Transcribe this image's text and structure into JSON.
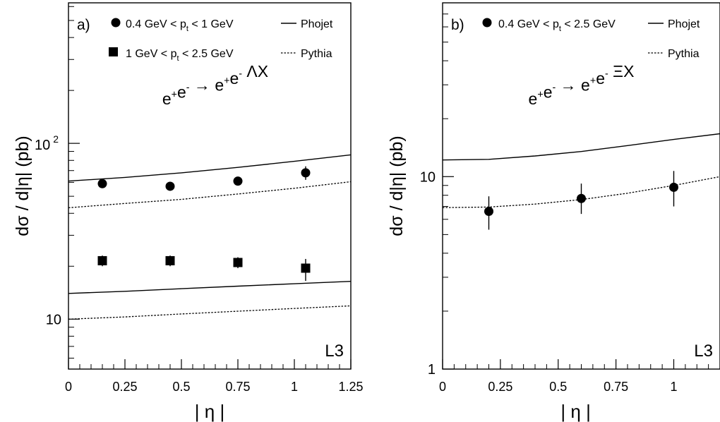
{
  "chart_data": [
    {
      "type": "scatter",
      "panel_label": "a)",
      "ylabel": "dσ / d|η| (pb)",
      "xlabel": "| η |",
      "reaction": "e⁺e⁻ → e⁺e⁻ ΛX",
      "experiment": "L3",
      "x_scale": "linear",
      "y_scale": "log",
      "xlim": [
        0,
        1.25
      ],
      "ylim": [
        5.2,
        630
      ],
      "x_ticks": [
        "0",
        "0.25",
        "0.5",
        "0.75",
        "1",
        "1.25"
      ],
      "y_tick_labels": [
        {
          "value": 100,
          "label": "10",
          "exponent": "2"
        },
        {
          "value": 10,
          "label": "10",
          "exponent": ""
        }
      ],
      "legend": [
        {
          "marker": "circle",
          "text": "0.4 GeV < p",
          "sub": "t",
          "text2": " < 1 GeV"
        },
        {
          "marker": "square",
          "text": "1 GeV < p",
          "sub": "t",
          "text2": " < 2.5 GeV"
        },
        {
          "line": "solid",
          "text": "Phojet"
        },
        {
          "line": "dotted",
          "text": "Pythia"
        }
      ],
      "series": [
        {
          "marker": "circle",
          "x": [
            0.15,
            0.45,
            0.75,
            1.05
          ],
          "y": [
            59,
            57,
            61,
            68
          ],
          "yerr_low": [
            1.5,
            1.5,
            2.5,
            6
          ],
          "yerr_high": [
            1.5,
            1.5,
            2.5,
            6
          ]
        },
        {
          "marker": "square",
          "x": [
            0.15,
            0.45,
            0.75,
            1.05
          ],
          "y": [
            21.5,
            21.5,
            21,
            19.5
          ],
          "yerr_low": [
            1.5,
            1.5,
            1.5,
            3
          ],
          "yerr_high": [
            1.5,
            1.5,
            1.5,
            2.5
          ]
        },
        {
          "line": "solid",
          "x": [
            0,
            0.25,
            0.5,
            0.75,
            1.0,
            1.25
          ],
          "y": [
            61,
            64,
            68,
            73,
            79,
            86
          ]
        },
        {
          "line": "dotted",
          "x": [
            0,
            0.25,
            0.5,
            0.75,
            1.0,
            1.25
          ],
          "y": [
            43,
            45.5,
            48,
            51.5,
            55.5,
            60.5
          ]
        },
        {
          "line": "solid",
          "x": [
            0,
            0.25,
            0.5,
            0.75,
            1.0,
            1.25
          ],
          "y": [
            14,
            14.4,
            14.9,
            15.4,
            15.9,
            16.4
          ]
        },
        {
          "line": "dotted",
          "x": [
            0,
            0.25,
            0.5,
            0.75,
            1.0,
            1.25
          ],
          "y": [
            10,
            10.3,
            10.7,
            11.1,
            11.5,
            11.9
          ]
        }
      ]
    },
    {
      "type": "scatter",
      "panel_label": "b)",
      "ylabel": "dσ / d|η| (pb)",
      "xlabel": "| η |",
      "reaction": "e⁺e⁻ → e⁺e⁻ ΞX",
      "experiment": "L3",
      "x_scale": "linear",
      "y_scale": "log",
      "xlim": [
        0,
        1.2
      ],
      "ylim": [
        1,
        80
      ],
      "x_ticks": [
        "0",
        "0.25",
        "0.5",
        "0.75",
        "1"
      ],
      "y_tick_labels": [
        {
          "value": 10,
          "label": "10",
          "exponent": ""
        },
        {
          "value": 1,
          "label": "1",
          "exponent": ""
        }
      ],
      "legend": [
        {
          "marker": "circle",
          "text": "0.4 GeV < p",
          "sub": "t",
          "text2": " < 2.5 GeV"
        },
        {
          "line": "solid",
          "text": "Phojet"
        },
        {
          "line": "dotted",
          "text": "Pythia"
        }
      ],
      "series": [
        {
          "marker": "circle",
          "x": [
            0.2,
            0.6,
            1.0
          ],
          "y": [
            6.6,
            7.7,
            8.8
          ],
          "yerr_low": [
            1.3,
            1.3,
            1.8
          ],
          "yerr_high": [
            1.3,
            1.5,
            1.9
          ]
        },
        {
          "line": "solid",
          "x": [
            0,
            0.2,
            0.4,
            0.6,
            0.8,
            1.0,
            1.2
          ],
          "y": [
            12.2,
            12.3,
            12.8,
            13.5,
            14.5,
            15.6,
            16.7
          ]
        },
        {
          "line": "dotted",
          "x": [
            0,
            0.2,
            0.4,
            0.6,
            0.8,
            1.0,
            1.2
          ],
          "y": [
            6.9,
            6.95,
            7.2,
            7.6,
            8.2,
            9.0,
            10.0
          ]
        }
      ]
    }
  ]
}
